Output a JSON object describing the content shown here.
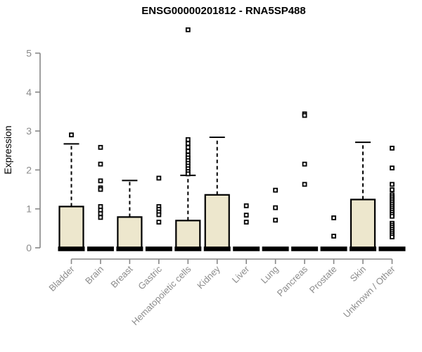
{
  "page": {
    "background": "#ffffff"
  },
  "chart_data": {
    "type": "boxplot",
    "title": "ENSG00000201812 - RNA5SP488",
    "ylabel": "Expression",
    "xlabel": "",
    "ylim": [
      0,
      5.75
    ],
    "yticks": [
      0,
      1,
      2,
      3,
      4,
      5
    ],
    "grid": false,
    "legend": "none",
    "categories": [
      "Bladder",
      "Brain",
      "Breast",
      "Gastric",
      "Hematopoietic cells",
      "Kidney",
      "Liver",
      "Lung",
      "Pancreas",
      "Prostate",
      "Skin",
      "Unknown / Other"
    ],
    "boxes": [
      {
        "category": "Bladder",
        "min": 0,
        "q1": 0,
        "median": 0,
        "q3": 1.06,
        "whisker_high": 2.67,
        "outliers": [
          2.9
        ]
      },
      {
        "category": "Brain",
        "min": 0,
        "q1": 0,
        "median": 0,
        "q3": 0,
        "whisker_high": 0,
        "outliers": [
          2.58,
          2.15,
          1.72,
          1.54,
          1.5,
          1.06,
          0.97,
          0.88,
          0.78
        ]
      },
      {
        "category": "Breast",
        "min": 0,
        "q1": 0,
        "median": 0,
        "q3": 0.79,
        "whisker_high": 1.73,
        "outliers": []
      },
      {
        "category": "Gastric",
        "min": 0,
        "q1": 0,
        "median": 0,
        "q3": 0,
        "whisker_high": 0,
        "outliers": [
          1.79,
          1.06,
          0.99,
          0.92,
          0.85,
          0.66
        ]
      },
      {
        "category": "Hematopoietic cells",
        "min": 0,
        "q1": 0,
        "median": 0,
        "q3": 0.7,
        "whisker_high": 1.86,
        "outliers": [
          5.6,
          2.78,
          2.68,
          2.58,
          2.48,
          2.38,
          2.31,
          2.24,
          2.17,
          2.1,
          2.03,
          1.96,
          1.9
        ]
      },
      {
        "category": "Kidney",
        "min": 0,
        "q1": 0,
        "median": 0,
        "q3": 1.36,
        "whisker_high": 2.84,
        "outliers": []
      },
      {
        "category": "Liver",
        "min": 0,
        "q1": 0,
        "median": 0,
        "q3": 0,
        "whisker_high": 0,
        "outliers": [
          1.08,
          0.84,
          0.66
        ]
      },
      {
        "category": "Lung",
        "min": 0,
        "q1": 0,
        "median": 0,
        "q3": 0,
        "whisker_high": 0,
        "outliers": [
          1.48,
          1.03,
          0.71
        ]
      },
      {
        "category": "Pancreas",
        "min": 0,
        "q1": 0,
        "median": 0,
        "q3": 0,
        "whisker_high": 0,
        "outliers": [
          3.44,
          3.4,
          2.15,
          1.63
        ]
      },
      {
        "category": "Prostate",
        "min": 0,
        "q1": 0,
        "median": 0,
        "q3": 0,
        "whisker_high": 0,
        "outliers": [
          0.77,
          0.3
        ]
      },
      {
        "category": "Skin",
        "min": 0,
        "q1": 0,
        "median": 0,
        "q3": 1.24,
        "whisker_high": 2.71,
        "outliers": []
      },
      {
        "category": "Unknown / Other",
        "min": 0,
        "q1": 0,
        "median": 0,
        "q3": 0,
        "whisker_high": 0,
        "outliers": [
          2.56,
          2.05,
          1.63,
          1.49,
          1.36,
          1.31,
          1.26,
          1.21,
          1.16,
          1.11,
          1.06,
          1.01,
          0.96,
          0.91,
          0.86,
          0.81,
          0.63,
          0.58,
          0.53,
          0.48,
          0.43,
          0.38,
          0.33,
          0.28
        ]
      }
    ],
    "style": {
      "box_fill": "#EDE7CD",
      "box_border": "#000000",
      "median_color": "#000000",
      "whisker_color": "#000000",
      "whisker_style": "dashed",
      "outlier_marker": "open-square",
      "axis_color": "#878787",
      "label_color": "#8C8C8C",
      "title_color": "#000000"
    }
  }
}
